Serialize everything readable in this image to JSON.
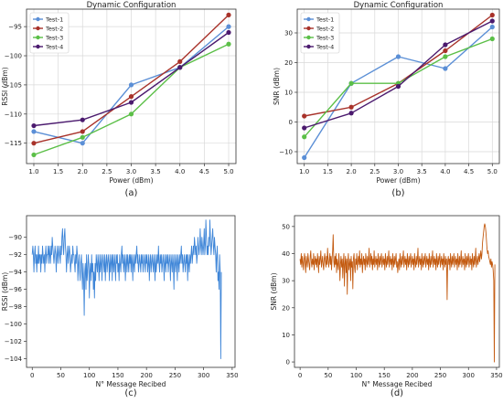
{
  "chart_data": [
    {
      "type": "line",
      "title": "Dynamic Configuration",
      "xlabel": "Power (dBm)",
      "ylabel": "RSSI (dBm)",
      "panel_label": "(a)",
      "x": [
        1.0,
        2.0,
        3.0,
        4.0,
        5.0
      ],
      "xlim": [
        0.85,
        5.15
      ],
      "ylim": [
        -118.5,
        -92
      ],
      "xticks": [
        "1.0",
        "1.5",
        "2.0",
        "2.5",
        "3.0",
        "3.5",
        "4.0",
        "4.5",
        "5.0"
      ],
      "xtick_values": [
        1.0,
        1.5,
        2.0,
        2.5,
        3.0,
        3.5,
        4.0,
        4.5,
        5.0
      ],
      "yticks": [
        "−115",
        "−110",
        "−105",
        "−100",
        "−95"
      ],
      "ytick_values": [
        -115,
        -110,
        -105,
        -100,
        -95
      ],
      "grid": true,
      "legend": "top-left",
      "series": [
        {
          "name": "Test-1",
          "color": "#5b8fd6",
          "values": [
            -113,
            -115,
            -105,
            -102,
            -95
          ]
        },
        {
          "name": "Test-2",
          "color": "#a8322a",
          "values": [
            -115,
            -113,
            -107,
            -101,
            -93
          ]
        },
        {
          "name": "Test-3",
          "color": "#5bbf47",
          "values": [
            -117,
            -114,
            -110,
            -102,
            -98
          ]
        },
        {
          "name": "Test-4",
          "color": "#4b1a6e",
          "values": [
            -112,
            -111,
            -108,
            -102,
            -96
          ]
        }
      ]
    },
    {
      "type": "line",
      "title": "Dynamic Configuration",
      "xlabel": "Power (dBm)",
      "ylabel": "SNR (dBm)",
      "panel_label": "(b)",
      "x": [
        1.0,
        2.0,
        3.0,
        4.0,
        5.0
      ],
      "xlim": [
        0.85,
        5.15
      ],
      "ylim": [
        -14,
        38
      ],
      "xticks": [
        "1.0",
        "1.5",
        "2.0",
        "2.5",
        "3.0",
        "3.5",
        "4.0",
        "4.5",
        "5.0"
      ],
      "xtick_values": [
        1.0,
        1.5,
        2.0,
        2.5,
        3.0,
        3.5,
        4.0,
        4.5,
        5.0
      ],
      "yticks": [
        "−10",
        "0",
        "10",
        "20",
        "30"
      ],
      "ytick_values": [
        -10,
        0,
        10,
        20,
        30
      ],
      "grid": true,
      "legend": "top-left",
      "series": [
        {
          "name": "Test-1",
          "color": "#5b8fd6",
          "values": [
            -12,
            13,
            22,
            18,
            32
          ]
        },
        {
          "name": "Test-2",
          "color": "#a8322a",
          "values": [
            2,
            5,
            13,
            24,
            36
          ]
        },
        {
          "name": "Test-3",
          "color": "#5bbf47",
          "values": [
            -5,
            13,
            13,
            22,
            28
          ]
        },
        {
          "name": "Test-4",
          "color": "#4b1a6e",
          "values": [
            -2,
            3,
            12,
            26,
            34
          ]
        }
      ]
    },
    {
      "type": "line",
      "title": "",
      "xlabel": "N° Message Recibed",
      "ylabel": "RSSI (dBm)",
      "panel_label": "(c)",
      "xlim": [
        -10,
        355
      ],
      "ylim": [
        -105,
        -87.5
      ],
      "xticks": [
        "0",
        "50",
        "100",
        "150",
        "200",
        "250",
        "300",
        "350"
      ],
      "xtick_values": [
        0,
        50,
        100,
        150,
        200,
        250,
        300,
        350
      ],
      "yticks": [
        "−104",
        "−102",
        "−100",
        "−98",
        "−96",
        "−94",
        "−92",
        "−90"
      ],
      "ytick_values": [
        -104,
        -102,
        -100,
        -98,
        -96,
        -94,
        -92,
        -90
      ],
      "grid": false,
      "series": [
        {
          "name": "",
          "color": "#3f86d8",
          "x_start": 0,
          "values": [
            -92,
            -91,
            -92,
            -94,
            -92,
            -91,
            -93,
            -92,
            -94,
            -92,
            -93,
            -91,
            -93,
            -92,
            -92,
            -94,
            -92,
            -93,
            -91,
            -92,
            -93,
            -92,
            -94,
            -92,
            -91,
            -93,
            -92,
            -92,
            -91,
            -93,
            -91,
            -92,
            -93,
            -91,
            -92,
            -90,
            -91,
            -92,
            -93,
            -92,
            -91,
            -92,
            -94,
            -92,
            -91,
            -93,
            -92,
            -91,
            -92,
            -93,
            -91,
            -92,
            -90,
            -89,
            -91,
            -92,
            -90,
            -89,
            -91,
            -92,
            -94,
            -92,
            -91,
            -93,
            -92,
            -91,
            -92,
            -94,
            -93,
            -92,
            -93,
            -91,
            -92,
            -92,
            -93,
            -94,
            -92,
            -93,
            -91,
            -92,
            -95,
            -93,
            -92,
            -94,
            -95,
            -93,
            -92,
            -94,
            -96,
            -93,
            -95,
            -99,
            -94,
            -93,
            -96,
            -92,
            -95,
            -94,
            -92,
            -93,
            -97,
            -94,
            -93,
            -95,
            -92,
            -94,
            -93,
            -96,
            -94,
            -97,
            -93,
            -95,
            -92,
            -93,
            -94,
            -92,
            -93,
            -95,
            -92,
            -94,
            -93,
            -92,
            -95,
            -93,
            -92,
            -93,
            -94,
            -92,
            -95,
            -93,
            -92,
            -94,
            -93,
            -92,
            -93,
            -95,
            -92,
            -94,
            -93,
            -92,
            -95,
            -92,
            -93,
            -94,
            -92,
            -93,
            -95,
            -92,
            -93,
            -92,
            -94,
            -93,
            -95,
            -92,
            -93,
            -94,
            -92,
            -91,
            -93,
            -92,
            -94,
            -93,
            -92,
            -95,
            -93,
            -92,
            -94,
            -92,
            -93,
            -94,
            -92,
            -93,
            -92,
            -94,
            -92,
            -93,
            -95,
            -92,
            -93,
            -94,
            -92,
            -93,
            -92,
            -91,
            -93,
            -92,
            -94,
            -93,
            -92,
            -93,
            -94,
            -92,
            -93,
            -92,
            -94,
            -93,
            -92,
            -93,
            -94,
            -92,
            -93,
            -92,
            -94,
            -93,
            -92,
            -95,
            -93,
            -92,
            -94,
            -93,
            -92,
            -93,
            -94,
            -92,
            -93,
            -95,
            -92,
            -94,
            -93,
            -92,
            -93,
            -91,
            -93,
            -94,
            -92,
            -93,
            -92,
            -94,
            -93,
            -92,
            -93,
            -95,
            -92,
            -93,
            -94,
            -92,
            -93,
            -92,
            -94,
            -93,
            -92,
            -93,
            -95,
            -92,
            -93,
            -94,
            -92,
            -93,
            -96,
            -92,
            -93,
            -94,
            -92,
            -93,
            -95,
            -92,
            -93,
            -94,
            -92,
            -93,
            -92,
            -91,
            -93,
            -92,
            -94,
            -93,
            -92,
            -93,
            -94,
            -92,
            -93,
            -92,
            -95,
            -92,
            -93,
            -94,
            -92,
            -93,
            -92,
            -91,
            -93,
            -92,
            -91,
            -92,
            -90,
            -91,
            -92,
            -91,
            -93,
            -92,
            -90,
            -91,
            -92,
            -91,
            -89,
            -91,
            -92,
            -90,
            -91,
            -92,
            -91,
            -89,
            -92,
            -91,
            -88,
            -90,
            -92,
            -91,
            -92,
            -90,
            -91,
            -88,
            -90,
            -92,
            -91,
            -90,
            -89,
            -91,
            -92,
            -90,
            -91,
            -92,
            -94,
            -92,
            -91,
            -95,
            -94,
            -96,
            -92,
            -94,
            -104,
            -94
          ]
        }
      ]
    },
    {
      "type": "line",
      "title": "",
      "xlabel": "N° Message Recibed",
      "ylabel": "SNR (dBm)",
      "panel_label": "(d)",
      "xlim": [
        -10,
        355
      ],
      "ylim": [
        -2,
        54
      ],
      "xticks": [
        "0",
        "50",
        "100",
        "150",
        "200",
        "250",
        "300",
        "350"
      ],
      "xtick_values": [
        0,
        50,
        100,
        150,
        200,
        250,
        300,
        350
      ],
      "yticks": [
        "0",
        "10",
        "20",
        "30",
        "40",
        "50"
      ],
      "ytick_values": [
        0,
        10,
        20,
        30,
        40,
        50
      ],
      "grid": false,
      "series": [
        {
          "name": "",
          "color": "#c35a10",
          "x_start": 0,
          "values": [
            38,
            36,
            40,
            35,
            39,
            37,
            34,
            38,
            40,
            36,
            33,
            39,
            37,
            35,
            40,
            38,
            36,
            34,
            39,
            41,
            37,
            35,
            38,
            36,
            40,
            34,
            37,
            39,
            36,
            38,
            35,
            40,
            37,
            33,
            39,
            36,
            38,
            41,
            35,
            37,
            39,
            36,
            34,
            38,
            40,
            37,
            35,
            39,
            36,
            42,
            38,
            35,
            37,
            40,
            36,
            39,
            34,
            38,
            41,
            47,
            37,
            35,
            39,
            36,
            40,
            33,
            38,
            36,
            34,
            40,
            37,
            30,
            36,
            39,
            35,
            38,
            31,
            37,
            40,
            28,
            36,
            39,
            33,
            38,
            25,
            37,
            40,
            34,
            36,
            38,
            30,
            39,
            35,
            37,
            27,
            38,
            40,
            35,
            33,
            38,
            36,
            40,
            34,
            37,
            39,
            36,
            41,
            35,
            38,
            36,
            40,
            33,
            37,
            39,
            36,
            38,
            34,
            40,
            37,
            35,
            39,
            36,
            38,
            42,
            35,
            37,
            40,
            36,
            39,
            34,
            38,
            36,
            41,
            35,
            37,
            39,
            36,
            38,
            34,
            40,
            37,
            35,
            39,
            36,
            38,
            40,
            35,
            37,
            39,
            36,
            38,
            34,
            40,
            37,
            35,
            39,
            36,
            38,
            41,
            35,
            37,
            39,
            36,
            38,
            34,
            40,
            37,
            35,
            39,
            36,
            38,
            40,
            35,
            37,
            33,
            36,
            38,
            34,
            40,
            37,
            35,
            39,
            36,
            38,
            41,
            35,
            37,
            39,
            36,
            38,
            34,
            40,
            37,
            35,
            39,
            36,
            38,
            40,
            35,
            37,
            39,
            36,
            38,
            34,
            40,
            37,
            35,
            39,
            36,
            38,
            42,
            35,
            37,
            39,
            36,
            38,
            34,
            40,
            37,
            35,
            39,
            36,
            38,
            40,
            35,
            37,
            39,
            36,
            38,
            34,
            40,
            37,
            35,
            39,
            36,
            38,
            41,
            35,
            37,
            39,
            36,
            38,
            34,
            40,
            37,
            35,
            39,
            36,
            38,
            40,
            35,
            37,
            39,
            36,
            38,
            34,
            40,
            37,
            35,
            39,
            36,
            38,
            23,
            37,
            39,
            36,
            38,
            34,
            40,
            37,
            35,
            39,
            36,
            38,
            40,
            35,
            37,
            39,
            36,
            38,
            34,
            40,
            37,
            35,
            39,
            36,
            38,
            41,
            35,
            37,
            39,
            36,
            38,
            34,
            40,
            37,
            35,
            39,
            36,
            38,
            40,
            35,
            37,
            39,
            36,
            38,
            34,
            40,
            37,
            35,
            39,
            36,
            38,
            42,
            35,
            37,
            39,
            36,
            38,
            40,
            37,
            39,
            41,
            38,
            40,
            44,
            46,
            48,
            50,
            51,
            50,
            48,
            45,
            42,
            40,
            41,
            39,
            38,
            37,
            36,
            38,
            35,
            37,
            36,
            34,
            30,
            0,
            36
          ]
        }
      ]
    }
  ]
}
